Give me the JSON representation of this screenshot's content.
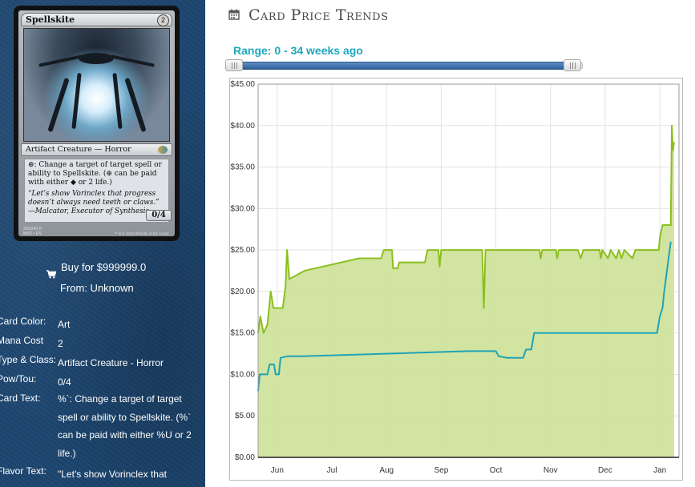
{
  "card": {
    "name": "Spellskite",
    "mana_cost": "2",
    "type_line": "Artifact Creature — Horror",
    "rules_text": "⊕: Change a target of target spell or ability to Spellskite. (⊕ can be paid with either ◆ or 2 life.)",
    "flavor_text": "“Let’s show Vorinclex that progress doesn’t always need teeth or claws.” —Malcator, Executor of Synthesis",
    "power_toughness": "0/4",
    "collector": "230/249 R",
    "set_line": "MM2 • EN",
    "copyright": "™ & © 2015 Wizards of the Coast"
  },
  "buy": {
    "price_label": "Buy for $999999.0",
    "from_label": "From: Unknown",
    "icon": "shopping-cart-icon"
  },
  "meta": [
    {
      "label": "Card Color:",
      "value": "Art"
    },
    {
      "label": "Mana Cost",
      "value": "2"
    },
    {
      "label": "Type & Class:",
      "value": "Artifact Creature - Horror"
    },
    {
      "label": "Pow/Tou:",
      "value": "0/4"
    },
    {
      "label": "Card Text:",
      "value": "%`: Change a target of target spell or ability to Spellskite. (%` can be paid with either %U or 2 life.)"
    },
    {
      "label": "Flavor Text:",
      "value": "\"Let's show Vorinclex that"
    }
  ],
  "header": {
    "title": "Card Price Trends",
    "icon": "calendar-icon"
  },
  "range": {
    "label": "Range: 0 - 34 weeks ago",
    "min_weeks": 0,
    "max_weeks": 34
  },
  "colors": {
    "sidebar_bg": "#1d4670",
    "accent": "#1fa7bf",
    "upper_line": "#8cbf1f",
    "upper_fill": "#cfe39c",
    "lower_line": "#21a3b5",
    "slider_fill": "#2e5f9c"
  },
  "chart_data": {
    "type": "area",
    "title": "",
    "xlabel": "",
    "ylabel": "",
    "ylim": [
      0,
      45
    ],
    "y_ticks": [
      "$0.00",
      "$5.00",
      "$10.00",
      "$15.00",
      "$20.00",
      "$25.00",
      "$30.00",
      "$35.00",
      "$40.00",
      "$45.00"
    ],
    "x_ticks": [
      {
        "label": "Jun",
        "x": 0.5
      },
      {
        "label": "Jul",
        "x": 1.5
      },
      {
        "label": "Aug",
        "x": 2.5
      },
      {
        "label": "Sep",
        "x": 3.5
      },
      {
        "label": "Oct",
        "x": 4.5
      },
      {
        "label": "Nov",
        "x": 5.5
      },
      {
        "label": "Dec",
        "x": 6.5
      },
      {
        "label": "Jan",
        "x": 7.5
      }
    ],
    "xlim": [
      0.15,
      7.85
    ],
    "grid": true,
    "series": [
      {
        "points": [
          [
            0.15,
            15
          ],
          [
            0.19,
            17
          ],
          [
            0.25,
            15
          ],
          [
            0.32,
            16
          ],
          [
            0.38,
            20
          ],
          [
            0.43,
            18
          ],
          [
            0.6,
            18
          ],
          [
            0.65,
            20.5
          ],
          [
            0.68,
            25
          ],
          [
            0.72,
            21.5
          ],
          [
            1.0,
            22.5
          ],
          [
            2.0,
            24
          ],
          [
            2.4,
            24
          ],
          [
            2.45,
            25
          ],
          [
            2.6,
            25
          ],
          [
            2.62,
            22.8
          ],
          [
            2.7,
            22.8
          ],
          [
            2.73,
            23.5
          ],
          [
            3.2,
            23.5
          ],
          [
            3.25,
            25
          ],
          [
            3.45,
            25
          ],
          [
            3.47,
            23
          ],
          [
            3.5,
            25
          ],
          [
            3.9,
            25
          ],
          [
            4.0,
            25
          ],
          [
            4.25,
            25
          ],
          [
            4.28,
            18
          ],
          [
            4.31,
            25
          ],
          [
            4.8,
            25
          ],
          [
            5.3,
            25
          ],
          [
            5.32,
            24
          ],
          [
            5.35,
            25
          ],
          [
            5.6,
            25
          ],
          [
            5.62,
            24
          ],
          [
            5.65,
            25
          ],
          [
            6.0,
            25
          ],
          [
            6.05,
            24
          ],
          [
            6.1,
            25
          ],
          [
            6.4,
            25
          ],
          [
            6.42,
            24
          ],
          [
            6.45,
            25
          ],
          [
            6.55,
            24
          ],
          [
            6.6,
            25
          ],
          [
            6.7,
            24
          ],
          [
            6.75,
            25
          ],
          [
            6.8,
            24
          ],
          [
            6.85,
            25
          ],
          [
            7.0,
            24
          ],
          [
            7.05,
            25
          ],
          [
            7.4,
            25
          ],
          [
            7.48,
            25
          ],
          [
            7.5,
            26.5
          ],
          [
            7.55,
            28
          ],
          [
            7.7,
            28
          ],
          [
            7.72,
            40
          ],
          [
            7.74,
            37
          ],
          [
            7.76,
            38
          ]
        ]
      },
      {
        "points": [
          [
            0.15,
            8
          ],
          [
            0.18,
            10
          ],
          [
            0.32,
            10
          ],
          [
            0.36,
            11.2
          ],
          [
            0.44,
            11.2
          ],
          [
            0.47,
            10
          ],
          [
            0.53,
            10
          ],
          [
            0.56,
            12
          ],
          [
            0.7,
            12.2
          ],
          [
            1.0,
            12.2
          ],
          [
            2.0,
            12.4
          ],
          [
            3.0,
            12.6
          ],
          [
            4.0,
            12.8
          ],
          [
            4.5,
            12.8
          ],
          [
            4.55,
            12.2
          ],
          [
            4.7,
            12.0
          ],
          [
            5.0,
            12.0
          ],
          [
            5.05,
            13
          ],
          [
            5.15,
            13
          ],
          [
            5.2,
            15
          ],
          [
            7.0,
            15
          ],
          [
            7.45,
            15
          ],
          [
            7.5,
            17
          ],
          [
            7.55,
            18
          ],
          [
            7.58,
            20
          ],
          [
            7.62,
            22
          ],
          [
            7.66,
            24
          ],
          [
            7.7,
            26
          ]
        ]
      }
    ]
  }
}
